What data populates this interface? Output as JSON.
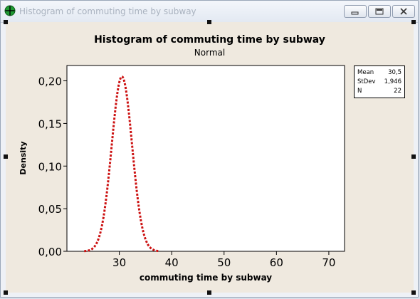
{
  "window": {
    "title": "Histogram of commuting time by subway",
    "minimize_icon": "minimize-icon",
    "restore_icon": "restore-icon",
    "close_icon": "close-icon",
    "app_icon": "crosshair-icon"
  },
  "chart_data": {
    "type": "line",
    "title": "Histogram of commuting time by subway",
    "subtitle": "Normal",
    "xlabel": "commuting time by subway",
    "ylabel": "Density",
    "xlim": [
      20,
      73
    ],
    "ylim": [
      0,
      0.218
    ],
    "xticks": [
      30,
      40,
      50,
      60,
      70
    ],
    "xtick_labels": [
      "30",
      "40",
      "50",
      "60",
      "70"
    ],
    "yticks": [
      0,
      0.05,
      0.1,
      0.15,
      0.2
    ],
    "ytick_labels": [
      "0,00",
      "0,05",
      "0,10",
      "0,15",
      "0,20"
    ],
    "series": [
      {
        "distribution": "normal",
        "mean": 30.5,
        "stdev": 1.946,
        "color": "#cc1111",
        "style": "dotted",
        "x_range": [
          23.3,
          37.7
        ]
      }
    ],
    "legend": {
      "placement": "right",
      "rows": [
        {
          "label": "Mean",
          "value": "30,5"
        },
        {
          "label": "StDev",
          "value": "1,946"
        },
        {
          "label": "N",
          "value": "22"
        }
      ]
    }
  }
}
